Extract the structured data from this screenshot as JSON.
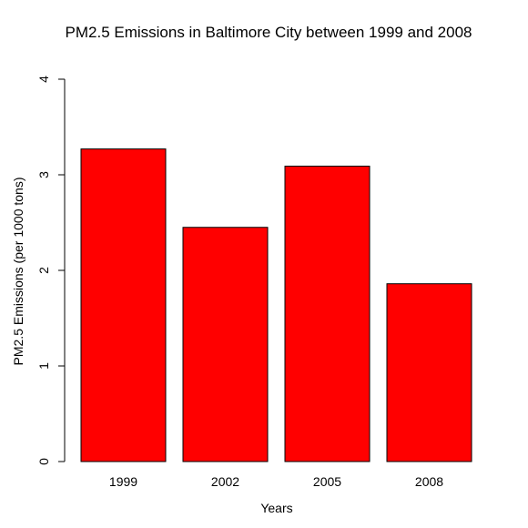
{
  "chart_data": {
    "type": "bar",
    "title": "PM2.5 Emissions in Baltimore City between 1999 and 2008",
    "xlabel": "Years",
    "ylabel": "PM2.5 Emissions (per 1000 tons)",
    "categories": [
      "1999",
      "2002",
      "2005",
      "2008"
    ],
    "values": [
      3.27,
      2.45,
      3.09,
      1.86
    ],
    "ylim": [
      0,
      4
    ],
    "yticks": [
      0,
      1,
      2,
      3,
      4
    ],
    "grid": false,
    "legend": "none",
    "bar_color": "#ff0000",
    "bar_border_color": "#000000"
  }
}
